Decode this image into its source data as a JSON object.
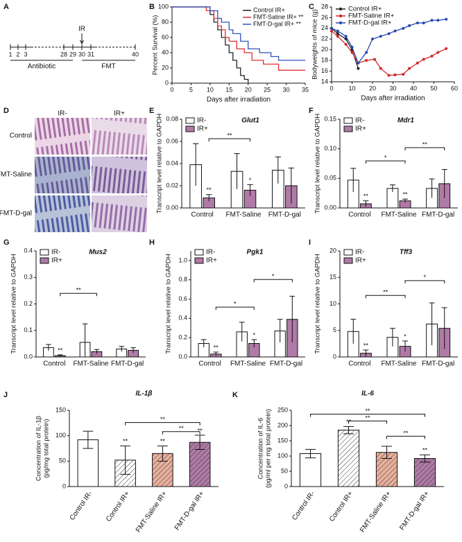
{
  "chart_data": [
    {
      "type": "timeline",
      "panel": "A",
      "ticks": [
        1,
        2,
        3,
        28,
        29,
        30,
        31,
        40
      ],
      "marker": "IR",
      "marker_at": 30,
      "periods": [
        {
          "label": "Antibiotic",
          "from": 1,
          "to": 29
        },
        {
          "label": "FMT",
          "from": 30,
          "to": 40
        }
      ]
    },
    {
      "type": "step",
      "panel": "B",
      "xlabel": "Days after irradiation",
      "ylabel": "Percent Survival (%)",
      "xlim": [
        0,
        35
      ],
      "xticks": [
        0,
        5,
        10,
        15,
        20,
        25,
        30,
        35
      ],
      "ylim": [
        0,
        100
      ],
      "yticks": [
        0,
        20,
        40,
        60,
        80,
        100
      ],
      "series": [
        {
          "name": "Control IR+",
          "color": "#222222",
          "x": [
            0,
            10,
            11,
            12,
            13,
            14,
            15,
            16,
            17,
            18,
            19,
            20
          ],
          "values": [
            100,
            90,
            80,
            70,
            60,
            50,
            40,
            30,
            20,
            10,
            5,
            0
          ]
        },
        {
          "name": "FMT-Saline IR+ **",
          "color": "#e03030",
          "x": [
            0,
            9,
            11,
            12,
            13,
            14,
            15,
            17,
            19,
            21,
            24,
            28,
            35
          ],
          "values": [
            100,
            95,
            85,
            75,
            70,
            60,
            55,
            45,
            40,
            30,
            25,
            17,
            17
          ]
        },
        {
          "name": "FMT-D-gal IR+ **",
          "color": "#3050c0",
          "x": [
            0,
            10,
            12,
            13,
            15,
            16,
            18,
            20,
            23,
            26,
            28,
            35
          ],
          "values": [
            100,
            95,
            85,
            80,
            70,
            65,
            55,
            45,
            40,
            35,
            30,
            30
          ]
        }
      ]
    },
    {
      "type": "line",
      "panel": "C",
      "xlabel": "Days after irradiation",
      "ylabel": "Bodyweights of mice (g)",
      "xlim": [
        0,
        60
      ],
      "xticks": [
        0,
        10,
        20,
        30,
        40,
        50,
        60
      ],
      "ylim": [
        14,
        28
      ],
      "yticks": [
        14,
        16,
        18,
        20,
        22,
        24,
        26,
        28
      ],
      "series": [
        {
          "name": "Control IR+",
          "color": "#222222",
          "x": [
            0,
            3,
            7,
            10,
            13
          ],
          "values": [
            24,
            23,
            22,
            20,
            16.5
          ]
        },
        {
          "name": "FMT-Saline IR+",
          "color": "#d02828",
          "x": [
            0,
            3,
            7,
            10,
            13,
            17,
            21,
            24,
            28,
            31,
            35,
            38,
            42,
            45,
            49,
            52,
            56
          ],
          "values": [
            23.5,
            22.5,
            21,
            19.5,
            17.5,
            18,
            18.2,
            16.5,
            15.2,
            15.3,
            15.4,
            16.5,
            17.5,
            18.2,
            18.8,
            19.5,
            20.2
          ]
        },
        {
          "name": "FMT-D-gal IR+",
          "color": "#2848b0",
          "x": [
            0,
            3,
            7,
            10,
            13,
            17,
            20,
            24,
            28,
            31,
            35,
            38,
            42,
            45,
            49,
            52,
            56
          ],
          "values": [
            24,
            23.5,
            22.5,
            20.5,
            17.5,
            19.5,
            22,
            22.5,
            23,
            23.5,
            24,
            24.5,
            25,
            25,
            25.5,
            25.5,
            25.7
          ]
        }
      ]
    },
    {
      "type": "images",
      "panel": "D",
      "columns": [
        "IR-",
        "IR+"
      ],
      "rows": [
        "Control",
        "FMT-Saline",
        "FMT-D-gal"
      ]
    },
    {
      "type": "groupbar",
      "panel": "E",
      "title": "Glut1",
      "ylabel": "Transcript level relative to GAPDH",
      "categories": [
        "Control",
        "FMT-Saline",
        "FMT-D-gal"
      ],
      "ylim": [
        0,
        0.08
      ],
      "yticks": [
        {
          "value": 0,
          "label": "0.00"
        },
        0.02,
        0.04,
        0.06,
        0.08
      ],
      "series": [
        {
          "name": "IR-",
          "color": "#ffffff",
          "values": [
            0.039,
            0.033,
            0.034
          ],
          "errors": [
            0.019,
            0.016,
            0.012
          ]
        },
        {
          "name": "IR+",
          "color": "#b07aa6",
          "values": [
            0.009,
            0.016,
            0.02
          ],
          "errors": [
            0.003,
            0.005,
            0.016
          ],
          "stars": [
            "**",
            "*",
            null
          ]
        }
      ],
      "brackets": [
        "**"
      ]
    },
    {
      "type": "groupbar",
      "panel": "F",
      "title": "Mdr1",
      "ylabel": "Transcript level relative to GAPDH",
      "categories": [
        "Control",
        "FMT-Saline",
        "FMT-D-gal"
      ],
      "ylim": [
        0,
        0.15
      ],
      "yticks": [
        {
          "value": 0,
          "label": "0.00"
        },
        0.05,
        {
          "value": 0.1,
          "label": "0.10"
        },
        0.15
      ],
      "series": [
        {
          "name": "IR-",
          "color": "#ffffff",
          "values": [
            0.047,
            0.033,
            0.033
          ],
          "errors": [
            0.02,
            0.006,
            0.016
          ]
        },
        {
          "name": "IR+",
          "color": "#b07aa6",
          "values": [
            0.007,
            0.012,
            0.041
          ],
          "errors": [
            0.005,
            0.003,
            0.024
          ],
          "stars": [
            "**",
            "**",
            null
          ]
        }
      ],
      "brackets": [
        "*",
        "**"
      ]
    },
    {
      "type": "groupbar",
      "panel": "G",
      "title": "Mus2",
      "ylabel": "Transcript level relative to GAPDH",
      "categories": [
        "Control",
        "FMT-Saline",
        "FMT-D-gal"
      ],
      "ylim": [
        0,
        0.4
      ],
      "yticks": [
        {
          "value": 0,
          "label": "0.0"
        },
        0.1,
        0.2,
        0.3,
        0.4
      ],
      "series": [
        {
          "name": "IR-",
          "color": "#ffffff",
          "values": [
            0.035,
            0.055,
            0.03
          ],
          "errors": [
            0.012,
            0.07,
            0.01
          ]
        },
        {
          "name": "IR+",
          "color": "#b07aa6",
          "values": [
            0.005,
            0.02,
            0.025
          ],
          "errors": [
            0.003,
            0.008,
            0.01
          ],
          "stars": [
            "**",
            null,
            null
          ]
        }
      ],
      "brackets": [
        "**"
      ]
    },
    {
      "type": "groupbar",
      "panel": "H",
      "title": "Pgk1",
      "ylabel": "Transcript level relative to GAPDH",
      "categories": [
        "Control",
        "FMT-Saline",
        "FMT-D-gal"
      ],
      "ylim": [
        0,
        1.1
      ],
      "yticks": [
        {
          "value": 0,
          "label": "0.0"
        },
        0.2,
        0.4,
        0.6,
        0.8,
        {
          "value": 1,
          "label": "1.0"
        }
      ],
      "series": [
        {
          "name": "IR-",
          "color": "#ffffff",
          "values": [
            0.14,
            0.26,
            0.27
          ],
          "errors": [
            0.04,
            0.1,
            0.12
          ]
        },
        {
          "name": "IR+",
          "color": "#b07aa6",
          "values": [
            0.03,
            0.14,
            0.39
          ],
          "errors": [
            0.02,
            0.04,
            0.24
          ],
          "stars": [
            "**",
            "*",
            null
          ]
        }
      ],
      "brackets": [
        "*",
        "*"
      ]
    },
    {
      "type": "groupbar",
      "panel": "I",
      "title": "Tff3",
      "ylabel": "Transcript level relative to GAPDH",
      "categories": [
        "Control",
        "FMT-Saline",
        "FMT-D-gal"
      ],
      "ylim": [
        0,
        20
      ],
      "yticks": [
        0,
        5,
        10,
        15,
        20
      ],
      "series": [
        {
          "name": "IR-",
          "color": "#ffffff",
          "values": [
            4.8,
            3.7,
            6.2
          ],
          "errors": [
            2.3,
            1.7,
            4
          ]
        },
        {
          "name": "IR+",
          "color": "#b07aa6",
          "values": [
            0.7,
            2,
            5.4
          ],
          "errors": [
            0.6,
            1,
            3.9
          ],
          "stars": [
            "**",
            "*",
            null
          ]
        }
      ],
      "brackets": [
        "**",
        "*"
      ]
    },
    {
      "type": "bar",
      "panel": "J",
      "title": "IL-1β",
      "ylabel": [
        "Concentration of IL-1β",
        "(pg/mg total protein)"
      ],
      "categories": [
        "Control IR-",
        "Control IR+",
        "FMT-Saline IR+",
        "FMT-D-gal IR+"
      ],
      "values": [
        92,
        52,
        65,
        87
      ],
      "errors": [
        17,
        28,
        15,
        14
      ],
      "colors": [
        "#ffffff",
        "#ffffff",
        "#e8b09c",
        "#b07aa6"
      ],
      "hatch": [
        false,
        true,
        true,
        true
      ],
      "stars": [
        null,
        "**",
        "**",
        "**"
      ],
      "ylim": [
        0,
        150
      ],
      "yticks": [
        0,
        50,
        100,
        150
      ],
      "brackets": [
        "**",
        "**"
      ]
    },
    {
      "type": "bar",
      "panel": "K",
      "title": "IL-6",
      "ylabel": [
        "Concentration of IL-6",
        "(pg/ml per mg total protein)"
      ],
      "categories": [
        "Control IR-",
        "Control IR+",
        "FMT-Saline IR+",
        "FMT-D-gal IR+"
      ],
      "values": [
        108,
        185,
        112,
        92
      ],
      "errors": [
        14,
        12,
        20,
        12
      ],
      "colors": [
        "#ffffff",
        "#ffffff",
        "#e8b09c",
        "#b07aa6"
      ],
      "hatch": [
        false,
        true,
        true,
        true
      ],
      "stars": [
        null,
        "**",
        null,
        "**"
      ],
      "ylim": [
        0,
        250
      ],
      "yticks": [
        0,
        50,
        100,
        150,
        200,
        250
      ],
      "brackets": [
        "**",
        "**",
        "**"
      ]
    }
  ]
}
